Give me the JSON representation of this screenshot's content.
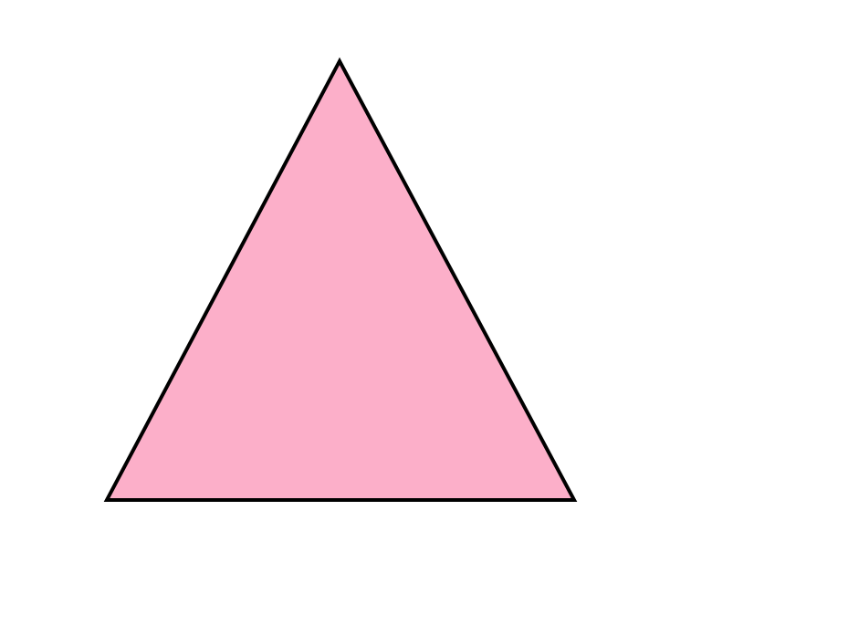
{
  "shape": {
    "kind": "triangle",
    "fill_color": "#fcafc9",
    "stroke_color": "#000000"
  }
}
